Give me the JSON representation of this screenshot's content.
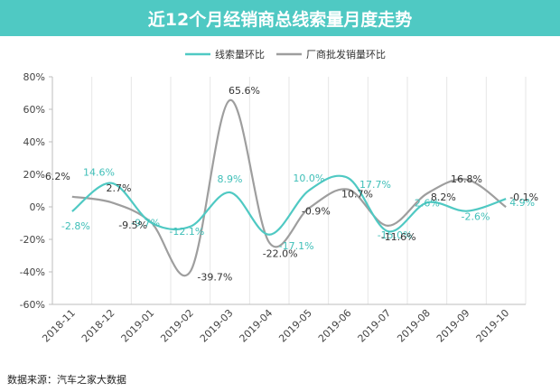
{
  "chart_data": {
    "type": "line",
    "title": "近12个月经销商总线索量月度走势",
    "categories": [
      "2018-11",
      "2018-12",
      "2019-01",
      "2019-02",
      "2019-03",
      "2019-04",
      "2019-05",
      "2019-06",
      "2019-07",
      "2019-08",
      "2019-09",
      "2019-10"
    ],
    "ylim": [
      -60,
      80
    ],
    "yticks": [
      "80%",
      "60%",
      "40%",
      "20%",
      "0%",
      "-20%",
      "-40%",
      "-60%"
    ],
    "grid": "vertical",
    "legend_position": "top-center",
    "series": [
      {
        "name": "线索量环比",
        "color": "#4fc9c3",
        "values": [
          -2.8,
          14.6,
          -9.7,
          -12.1,
          8.9,
          -17.1,
          10.0,
          17.7,
          -15.0,
          2.6,
          -2.6,
          4.9
        ],
        "labels": [
          "-2.8%",
          "14.6%",
          "-9.7%",
          "-12.1%",
          "8.9%",
          "-17.1%",
          "10.0%",
          "17.7%",
          "-15.0%",
          "2.6%",
          "-2.6%",
          "4.9%"
        ]
      },
      {
        "name": "厂商批发销量环比",
        "color": "#9e9e9e",
        "values": [
          6.2,
          2.7,
          -9.5,
          -39.7,
          65.6,
          -22.0,
          -0.9,
          10.7,
          -11.6,
          8.2,
          16.8,
          -0.1
        ],
        "labels": [
          "6.2%",
          "2.7%",
          "-9.5%",
          "-39.7%",
          "65.6%",
          "-22.0%",
          "-0.9%",
          "10.7%",
          "-11.6%",
          "8.2%",
          "16.8%",
          "-0.1%"
        ]
      }
    ]
  },
  "footer": {
    "source": "数据来源：汽车之家大数据"
  }
}
